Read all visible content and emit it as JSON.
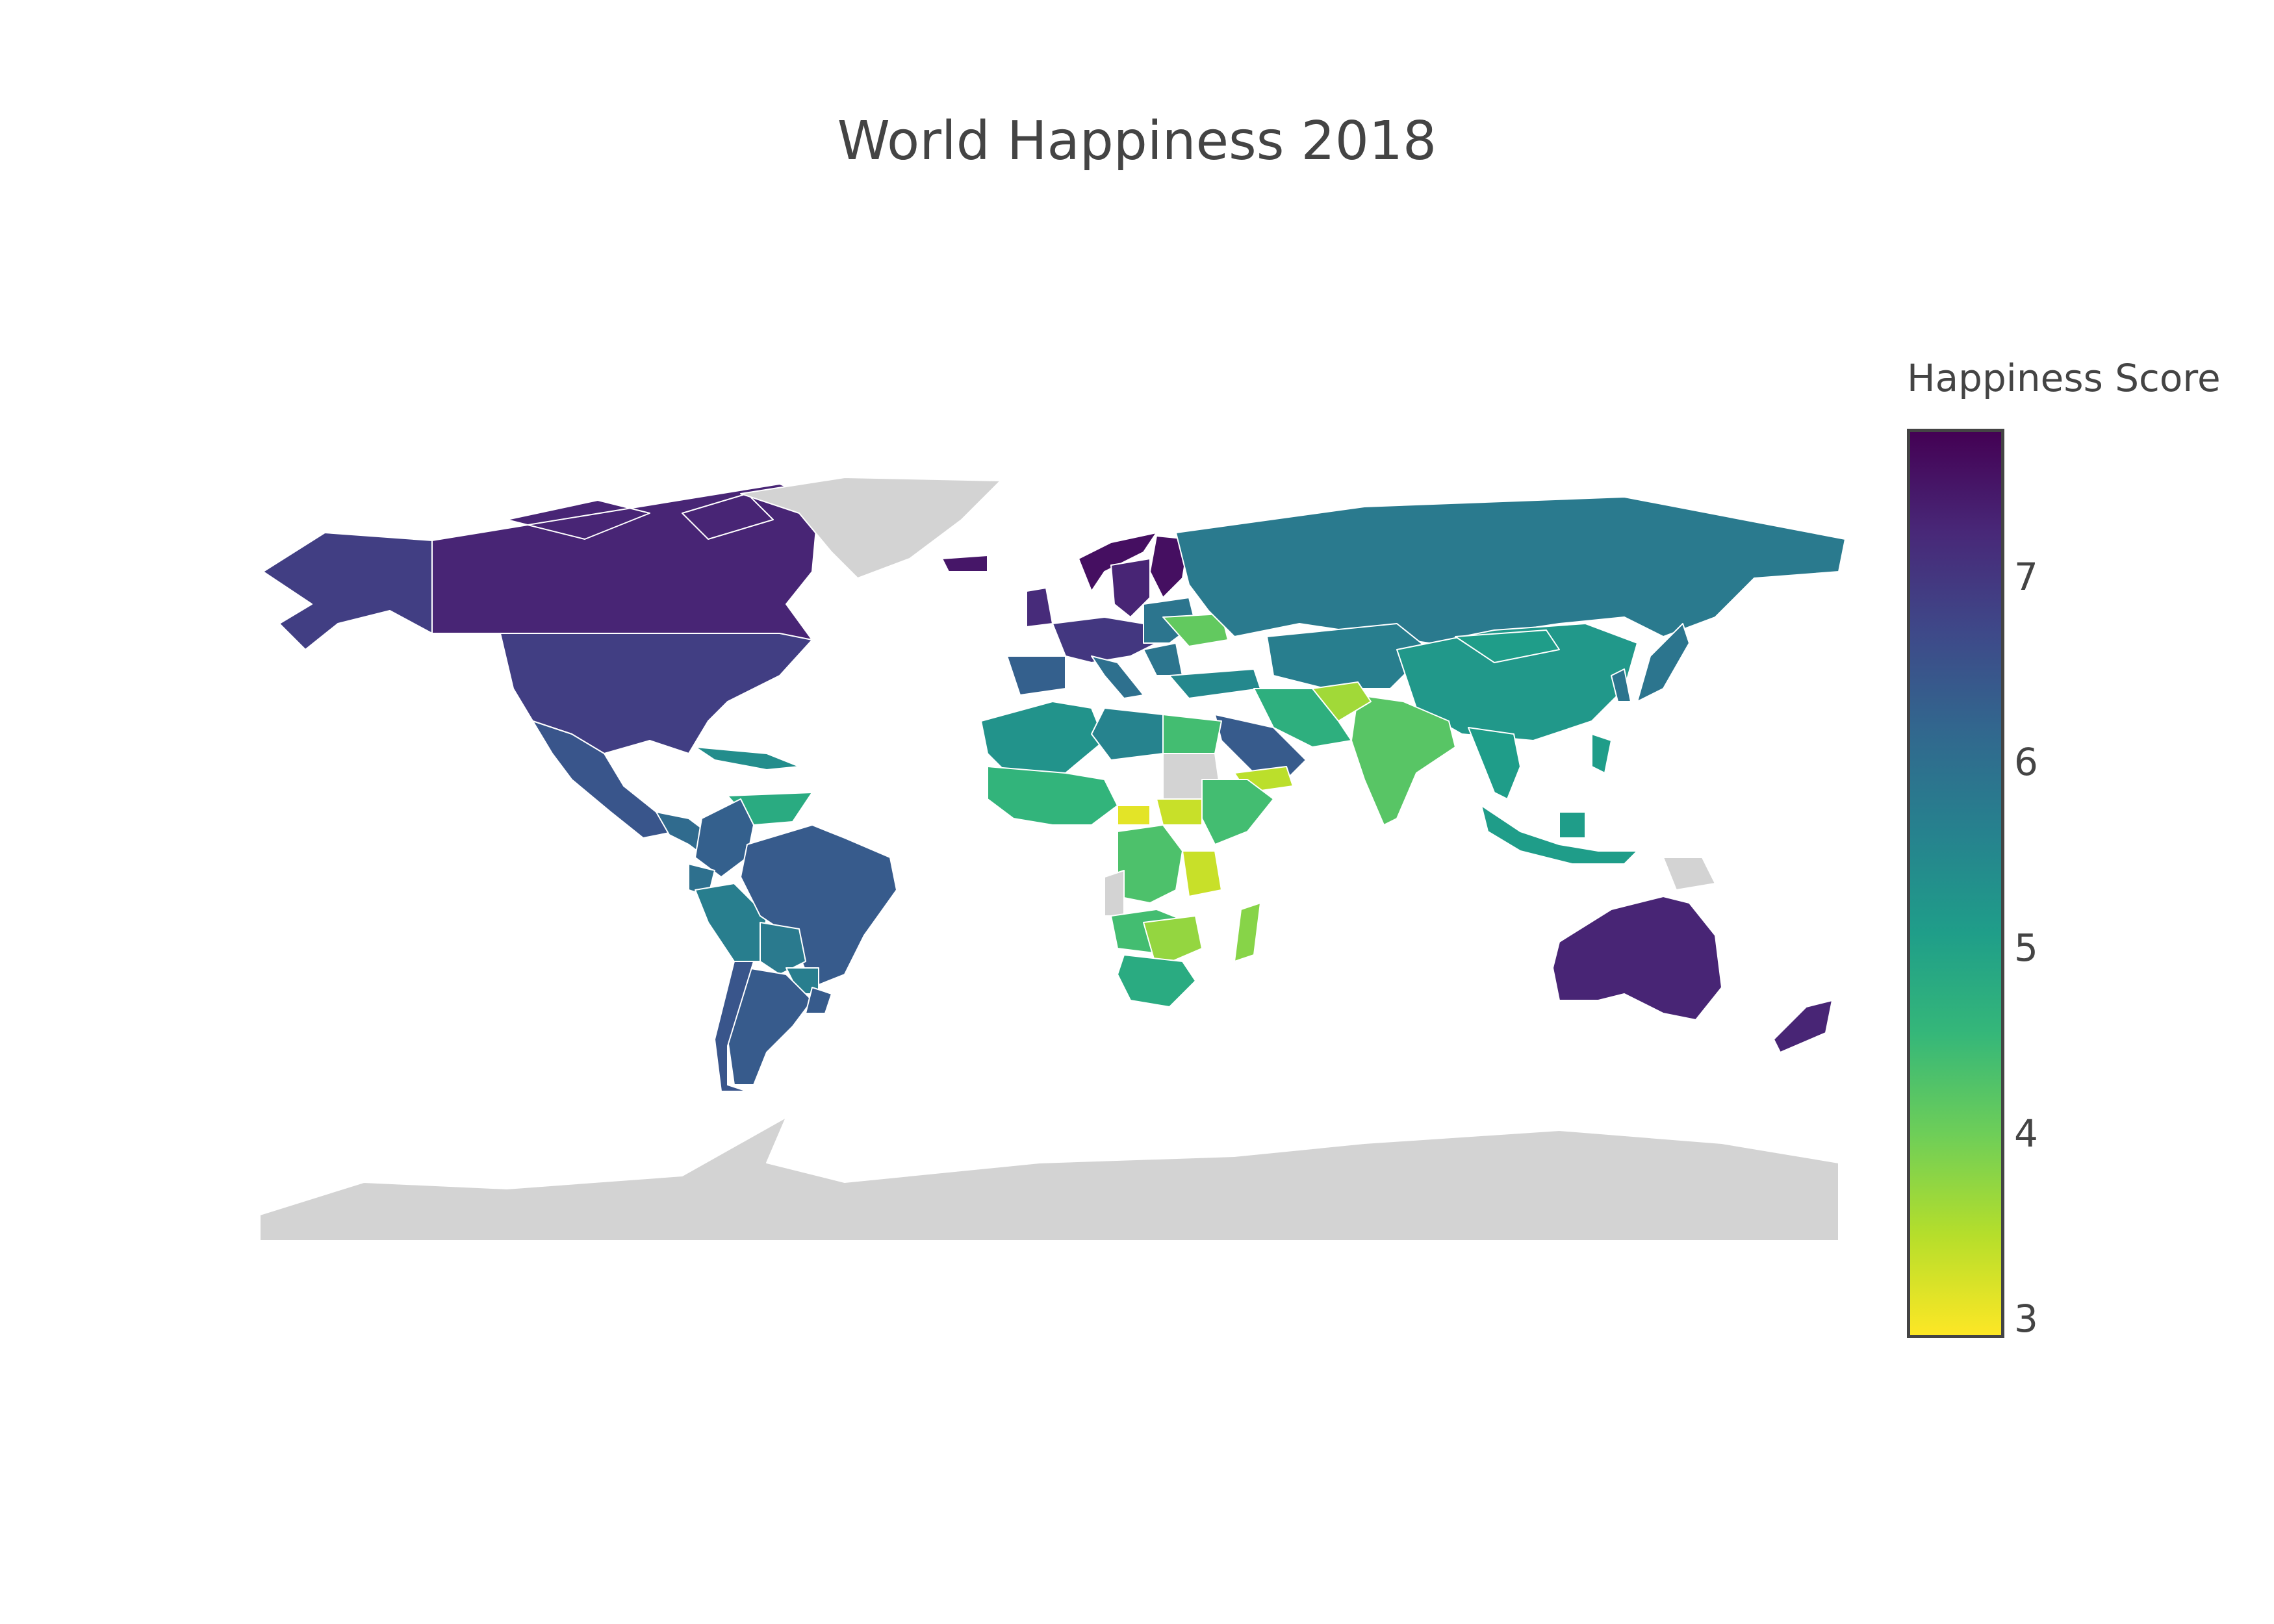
{
  "chart_data": {
    "type": "choropleth",
    "title": "World Happiness 2018",
    "projection": "equirectangular",
    "colorscale": "Viridis (reversed)",
    "colorscale_stops": [
      "#fde725",
      "#b5de2b",
      "#6ece58",
      "#35b779",
      "#1f9e89",
      "#26828e",
      "#31688e",
      "#3e4989",
      "#482878",
      "#440154"
    ],
    "no_data_color": "#d3d3d3",
    "colorbar": {
      "title": "Happiness Score",
      "range": [
        2.9,
        7.8
      ],
      "tick_values": [
        3,
        4,
        5,
        6,
        7
      ],
      "tick_labels": [
        "3",
        "4",
        "5",
        "6",
        "7"
      ]
    },
    "regions": [
      {
        "name": "Canada",
        "value": 7.3
      },
      {
        "name": "Alaska (United States)",
        "value": 6.9
      },
      {
        "name": "United States",
        "value": 6.9
      },
      {
        "name": "Mexico",
        "value": 6.5
      },
      {
        "name": "Central America",
        "value": 6.1
      },
      {
        "name": "Cuba / Caribbean",
        "value": 5.4
      },
      {
        "name": "Venezuela",
        "value": 4.8
      },
      {
        "name": "Colombia",
        "value": 6.3
      },
      {
        "name": "Ecuador",
        "value": 6.0
      },
      {
        "name": "Peru",
        "value": 5.7
      },
      {
        "name": "Brazil",
        "value": 6.4
      },
      {
        "name": "Bolivia",
        "value": 5.8
      },
      {
        "name": "Paraguay",
        "value": 5.7
      },
      {
        "name": "Argentina",
        "value": 6.4
      },
      {
        "name": "Chile",
        "value": 6.5
      },
      {
        "name": "Uruguay",
        "value": 6.4
      },
      {
        "name": "Greenland",
        "value": null
      },
      {
        "name": "Iceland",
        "value": 7.5
      },
      {
        "name": "Norway",
        "value": 7.6
      },
      {
        "name": "Finland",
        "value": 7.6
      },
      {
        "name": "Sweden",
        "value": 7.3
      },
      {
        "name": "United Kingdom",
        "value": 7.2
      },
      {
        "name": "Western Europe",
        "value": 7.0
      },
      {
        "name": "Spain / Portugal",
        "value": 6.3
      },
      {
        "name": "Italy",
        "value": 6.0
      },
      {
        "name": "Eastern Europe",
        "value": 5.9
      },
      {
        "name": "Ukraine",
        "value": 4.1
      },
      {
        "name": "Turkey",
        "value": 5.5
      },
      {
        "name": "Russia",
        "value": 5.8
      },
      {
        "name": "Kazakhstan / Central Asia",
        "value": 5.7
      },
      {
        "name": "China",
        "value": 5.2
      },
      {
        "name": "Mongolia",
        "value": 5.1
      },
      {
        "name": "Korea",
        "value": 5.9
      },
      {
        "name": "Japan",
        "value": 5.9
      },
      {
        "name": "India",
        "value": 4.2
      },
      {
        "name": "Afghanistan",
        "value": 3.6
      },
      {
        "name": "Iran / Pakistan",
        "value": 4.7
      },
      {
        "name": "Saudi Arabia",
        "value": 6.4
      },
      {
        "name": "Yemen",
        "value": 3.4
      },
      {
        "name": "Southeast Asia",
        "value": 5.1
      },
      {
        "name": "Indonesia",
        "value": 5.1
      },
      {
        "name": "Papua New Guinea",
        "value": null
      },
      {
        "name": "Australia",
        "value": 7.3
      },
      {
        "name": "New Zealand",
        "value": 7.3
      },
      {
        "name": "North-West Africa",
        "value": 5.3
      },
      {
        "name": "Libya",
        "value": 5.6
      },
      {
        "name": "Egypt",
        "value": 4.4
      },
      {
        "name": "Sudan",
        "value": null
      },
      {
        "name": "West Africa",
        "value": 4.6
      },
      {
        "name": "Central African Republic",
        "value": 3.1
      },
      {
        "name": "South Sudan",
        "value": 3.3
      },
      {
        "name": "Ethiopia / Horn of Africa",
        "value": 4.4
      },
      {
        "name": "Congo basin",
        "value": 4.3
      },
      {
        "name": "Gabon / Congo west",
        "value": null
      },
      {
        "name": "Tanzania",
        "value": 3.3
      },
      {
        "name": "Angola / Zambia",
        "value": 4.4
      },
      {
        "name": "Zimbabwe / Malawi",
        "value": 3.7
      },
      {
        "name": "South Africa region",
        "value": 4.8
      },
      {
        "name": "Madagascar",
        "value": 3.8
      },
      {
        "name": "Antarctica",
        "value": null
      }
    ]
  }
}
